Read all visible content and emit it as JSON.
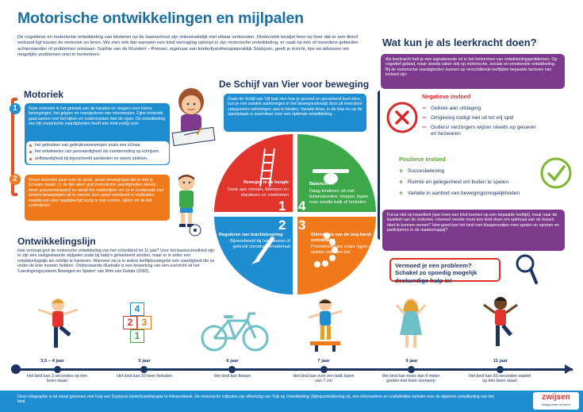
{
  "header": {
    "title": "Motorische ontwikkelingen en mijlpalen",
    "intro": "De cognitieve en motorische ontwikkeling van kinderen op de basisschool zijn onlosmakelijk met elkaar verbonden. Onderzoek bewijst heer op heer dat er een direct verband ligt tussen de motoriek en leren. We zien ook dat wanneer een kind vertraging oploopt in zijn motorische ontwikkeling, er vaak op één of meerdere gebieden achterstanden of problemen ontstaan. Sophie van de Klundert – Prinsen, eigenaar van kinderfysiotherapiepraktijk Sophysio, geeft je inzicht, tips en adviezen om mogelijke problemen snel te herkennen."
  },
  "motoriek": {
    "title": "Motoriek",
    "fijn_number": "1",
    "fijn_text": "Fijne motoriek is het gebruik van de handen en vingers voor kleine bewegingen, het grijpen en manipuleren van voorwerpen. Fijne motoriek gaat samen met het kijken en onderzoeken met de ogen. De ontwikkeling van fijn motorische vaardigheden heeft een kind nodig voor:",
    "fijn_items": [
      "het gebruiken van gebruiksvoorwerpen zoals een schaar.",
      "het ontwikkelen van penvaardigheid als voorbereiding op schrijven.",
      "zelfstandigheid bij bijvoorbeeld aankleden en veters strikken."
    ],
    "grof_number": "2",
    "grof_text": "Grove motoriek gaat over de grote, grove bewegingen die je met je lichaam maakt. In de tijd raken grof motorische vaardigheden steeds meer geautomatiseerd en wordt het makkelijker om ze in combinatie met andere bewegingen uit te voeren. Een goed voorbeeld is voetballen, waarbij een kind tegelijkertijd bezig is met rennen, kijken en de bal controleren!"
  },
  "ontwikkelingslijn": {
    "title": "Ontwikkelingslijn",
    "text": "Hoe verloopt grof de motorische ontwikkeling van het schoolkind tot 11 jaar? Voor het basisschoolkind zijn er zijn een vastgestaande mijlpalen zoals bij baby's gehanteerd worden, maar er is zeker een ontwikkelingslijn als richtlijn te hanteren. Wanneer zie je in iedere leeftijdscategorie een vaardigheid die ze onder de knie moeten hebben. Onderstaande illustratie is een bewerking van een overzicht uit het 'Leerlingvolgsysteem Bewegen en Spelen' van Wim van Gelder (2002).",
    "milestones": [
      {
        "age": "3,5 – 4 jaar",
        "caption": "Het kind kan 3 seconden op één been staan"
      },
      {
        "age": "5 jaar",
        "caption": "Het kind kan 10 keer hinkelen"
      },
      {
        "age": "6 jaar",
        "caption": "Het kind kan fietsen"
      },
      {
        "age": "7 jaar",
        "caption": "Het kind kan over een balk lopen van 7 cm"
      },
      {
        "age": "9 jaar",
        "caption": "Het kind kan meer dan 9 meter goolen met klein voorwerp"
      },
      {
        "age": "11 jaar",
        "caption": "Het kind kan 60 seconden stabiel op één been staan"
      }
    ],
    "hopscotch": [
      "4",
      "2",
      "3",
      "1"
    ]
  },
  "schijf": {
    "title": "De Schijf van Vier voor beweging",
    "intro": "Zoals de Schijf van Vijf laat zien hoe je gezond en gevarieerd kunt eten, kun je ook variatie aanbrengen in het bewegonderwijs door uit meerdere categorieën oefeningen aan te bieden. Variatie thuis, in de klas en op de speelplaats is essentieel voor een optimale ontwikkeling.",
    "q1_number": "1",
    "q1_title": "Bewegen in de hoogte",
    "q1_text": "Denk aan rennen, klimmen en klauteren en zwemmen",
    "q2_number": "2",
    "q2_title": "Reguleren van krachtdosering",
    "q2_text": "Bijvoorbeeld bij het kleuren of gebruik constructiemateriaal",
    "q3_number": "3",
    "q3_title": "Stimuleren van de oog-hand-coördinatie",
    "q3_text": "Precisiewerkjes zoals rijgen of spelen met een bal",
    "q4_number": "4",
    "q4_title": "Balanceren",
    "q4_text": "Daag kinderen uit met balansborden, stepjes, lopen over smalle balk of hinkelen"
  },
  "leerkracht": {
    "title": "Wat kun je als leerkracht doen?",
    "intro": "Als leerkracht heb je een signalerende rol in het herkennen van ontwikkelingsproblemen. Op cognitief gebied, maar steeds vaker ook op motorische, sociale en emotionele ontwikkeling. Bij de motorische vaardigheden kunnen op verschillende leeftijden bepaalde factoren van invloed zijn:",
    "neg_title": "Negatieve invloed",
    "neg_items": [
      "Gebrek aan uitdaging",
      "Omgeving nodigt niet uit tot vrij spel",
      "Ouders/ verzorgers wijzen steeds op gevaren en bezwaren"
    ],
    "pos_title": "Positieve invloed",
    "pos_items": [
      "Succesbeleving",
      "Ruimte en gelegenheid om buiten te spelen",
      "Variatie in aanbod van bewegingsmogelijkheden"
    ],
    "focus": "Focus niet op kwantiteit (wat moet een kind kunnen op een bepaalde leeftijd), maar naar de kwaliteit van de motoriek. Hoeveel moeite moet een kind doen om optimaal aan de lessen deel te kunnen nemen? Hoe goed kan het kind met klasgenootjes mee spelen en sporten en participeren in de maatschappij?",
    "callout": "Vermoed je een probleem? Schakel zo spoedig mogelijk deskundige hulp in!"
  },
  "footer": {
    "text": "Deze infographic is tot stand gekomen met hulp van Sophysio kinderfysiotherapie te Hilvarenbeek. De motorische mijlpalen zijn afkomstig van 'Kijk op Ontwikkeling' (kijkopontwikkeling.nl), een informatieve en craftaftelijke website over de algehele ontwikkeling van het kind.",
    "brand": "zwijsen",
    "tagline": "Weeg leren tot leren"
  },
  "colors": {
    "red": "#e0342c",
    "green": "#3da84a",
    "blue": "#1f8ed1",
    "orange": "#f07a1a",
    "navy": "#1d3461",
    "purple": "#7d3a8c",
    "lime": "#7cb82f"
  }
}
